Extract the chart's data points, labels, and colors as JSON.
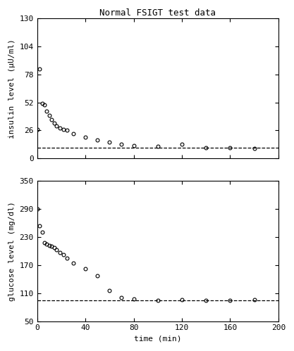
{
  "title": "Normal FSIGT test data",
  "insulin": {
    "x": [
      0,
      2,
      4,
      6,
      8,
      10,
      12,
      14,
      16,
      19,
      22,
      25,
      30,
      40,
      50,
      60,
      70,
      80,
      100,
      120,
      140,
      160,
      180
    ],
    "y": [
      27,
      83,
      51,
      50,
      44,
      40,
      36,
      33,
      30,
      28,
      27,
      26,
      23,
      20,
      17,
      15,
      13,
      12,
      11,
      13,
      10,
      10,
      9
    ],
    "dashed_y": 10,
    "ylabel": "insulin level (μU/ml)",
    "yticks": [
      0,
      26,
      52,
      78,
      104,
      130
    ],
    "ylim": [
      0,
      130
    ]
  },
  "glucose": {
    "x": [
      0,
      2,
      4,
      6,
      8,
      10,
      12,
      14,
      16,
      19,
      22,
      25,
      30,
      40,
      50,
      60,
      70,
      80,
      100,
      120,
      140,
      160,
      180
    ],
    "y": [
      290,
      255,
      240,
      218,
      215,
      212,
      210,
      207,
      203,
      197,
      192,
      185,
      175,
      163,
      148,
      115,
      100,
      97,
      95,
      96,
      94,
      95,
      96
    ],
    "dashed_y": 95,
    "ylabel": "glucose level (mg/dl)",
    "yticks": [
      50,
      110,
      170,
      230,
      290,
      350
    ],
    "ylim": [
      50,
      350
    ]
  },
  "xlim": [
    0,
    200
  ],
  "xticks": [
    0,
    40,
    80,
    120,
    160,
    200
  ],
  "xlabel": "time (min)",
  "marker": "o",
  "marker_size": 3.5,
  "line_color": "black",
  "bg_color": "white",
  "font_family": "monospace",
  "title_fontsize": 9,
  "label_fontsize": 8,
  "tick_fontsize": 8
}
